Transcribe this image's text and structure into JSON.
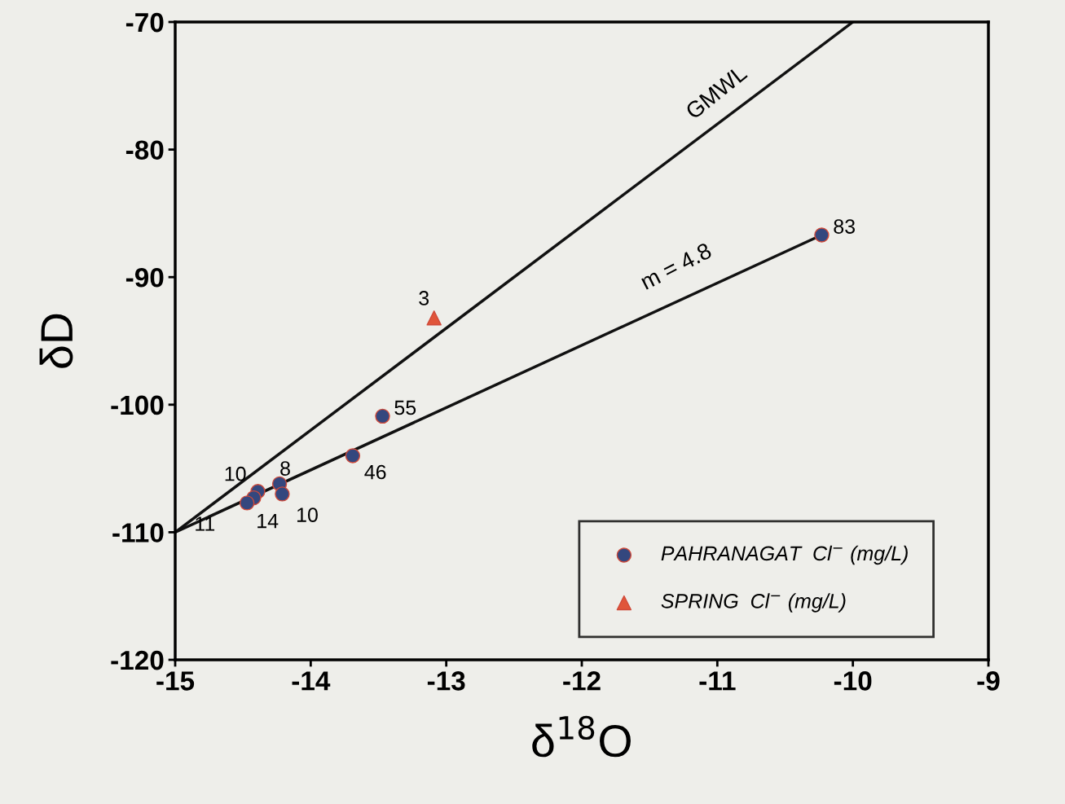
{
  "chart_data": {
    "type": "scatter",
    "xlabel": "δ$^{18}$O",
    "ylabel": "δD",
    "xlim": [
      -15,
      -9
    ],
    "xticks": [
      -15,
      -14,
      -13,
      -12,
      -11,
      -10,
      -9
    ],
    "ylim": [
      -120,
      -70
    ],
    "yticks": [
      -120,
      -110,
      -100,
      -90,
      -80,
      -70
    ],
    "grid": false,
    "legend": "bottom right",
    "series": [
      {
        "name": "PAHRANAGAT  Cl$^{−}$ (mg/L)",
        "marker": "circle",
        "color": "#34477e",
        "x": [
          -10.23,
          -13.47,
          -13.69,
          -14.23,
          -14.21,
          -14.39,
          -14.42,
          -14.47
        ],
        "values": [
          -86.7,
          -100.9,
          -104.0,
          -106.2,
          -107.0,
          -106.8,
          -107.3,
          -107.7
        ]
      },
      {
        "name": "SPRING  Cl$^{−}$ (mg/L)",
        "marker": "triangle",
        "color": "#e0553a",
        "x": [
          -13.09
        ],
        "values": [
          -93.2
        ]
      },
      {
        "type": "line",
        "marker": "none",
        "color": "#111111",
        "line_style": "solid",
        "x": [
          -15,
          -10
        ],
        "values": [
          -110,
          -70
        ]
      },
      {
        "type": "line",
        "marker": "none",
        "color": "#111111",
        "line_style": "solid",
        "x": [
          -15,
          -10.23
        ],
        "values": [
          -110,
          -86.7
        ]
      }
    ],
    "annotations": [
      {
        "text": "GMWL",
        "x": -11.0,
        "y": -78
      },
      {
        "text": "m = 4.8",
        "x": -11.3,
        "y": -91.9
      },
      {
        "text": "83",
        "x": -10.23,
        "y": -86.7
      },
      {
        "text": "55",
        "x": -13.47,
        "y": -100.9
      },
      {
        "text": "46",
        "x": -13.69,
        "y": -104.0
      },
      {
        "text": "8",
        "x": -14.23,
        "y": -106.2
      },
      {
        "text": "10",
        "x": -14.21,
        "y": -107.0
      },
      {
        "text": "10",
        "x": -14.39,
        "y": -106.8
      },
      {
        "text": "14",
        "x": -14.42,
        "y": -107.3
      },
      {
        "text": "11",
        "x": -14.47,
        "y": -107.7
      },
      {
        "text": "3",
        "x": -13.09,
        "y": -93.2
      }
    ]
  }
}
